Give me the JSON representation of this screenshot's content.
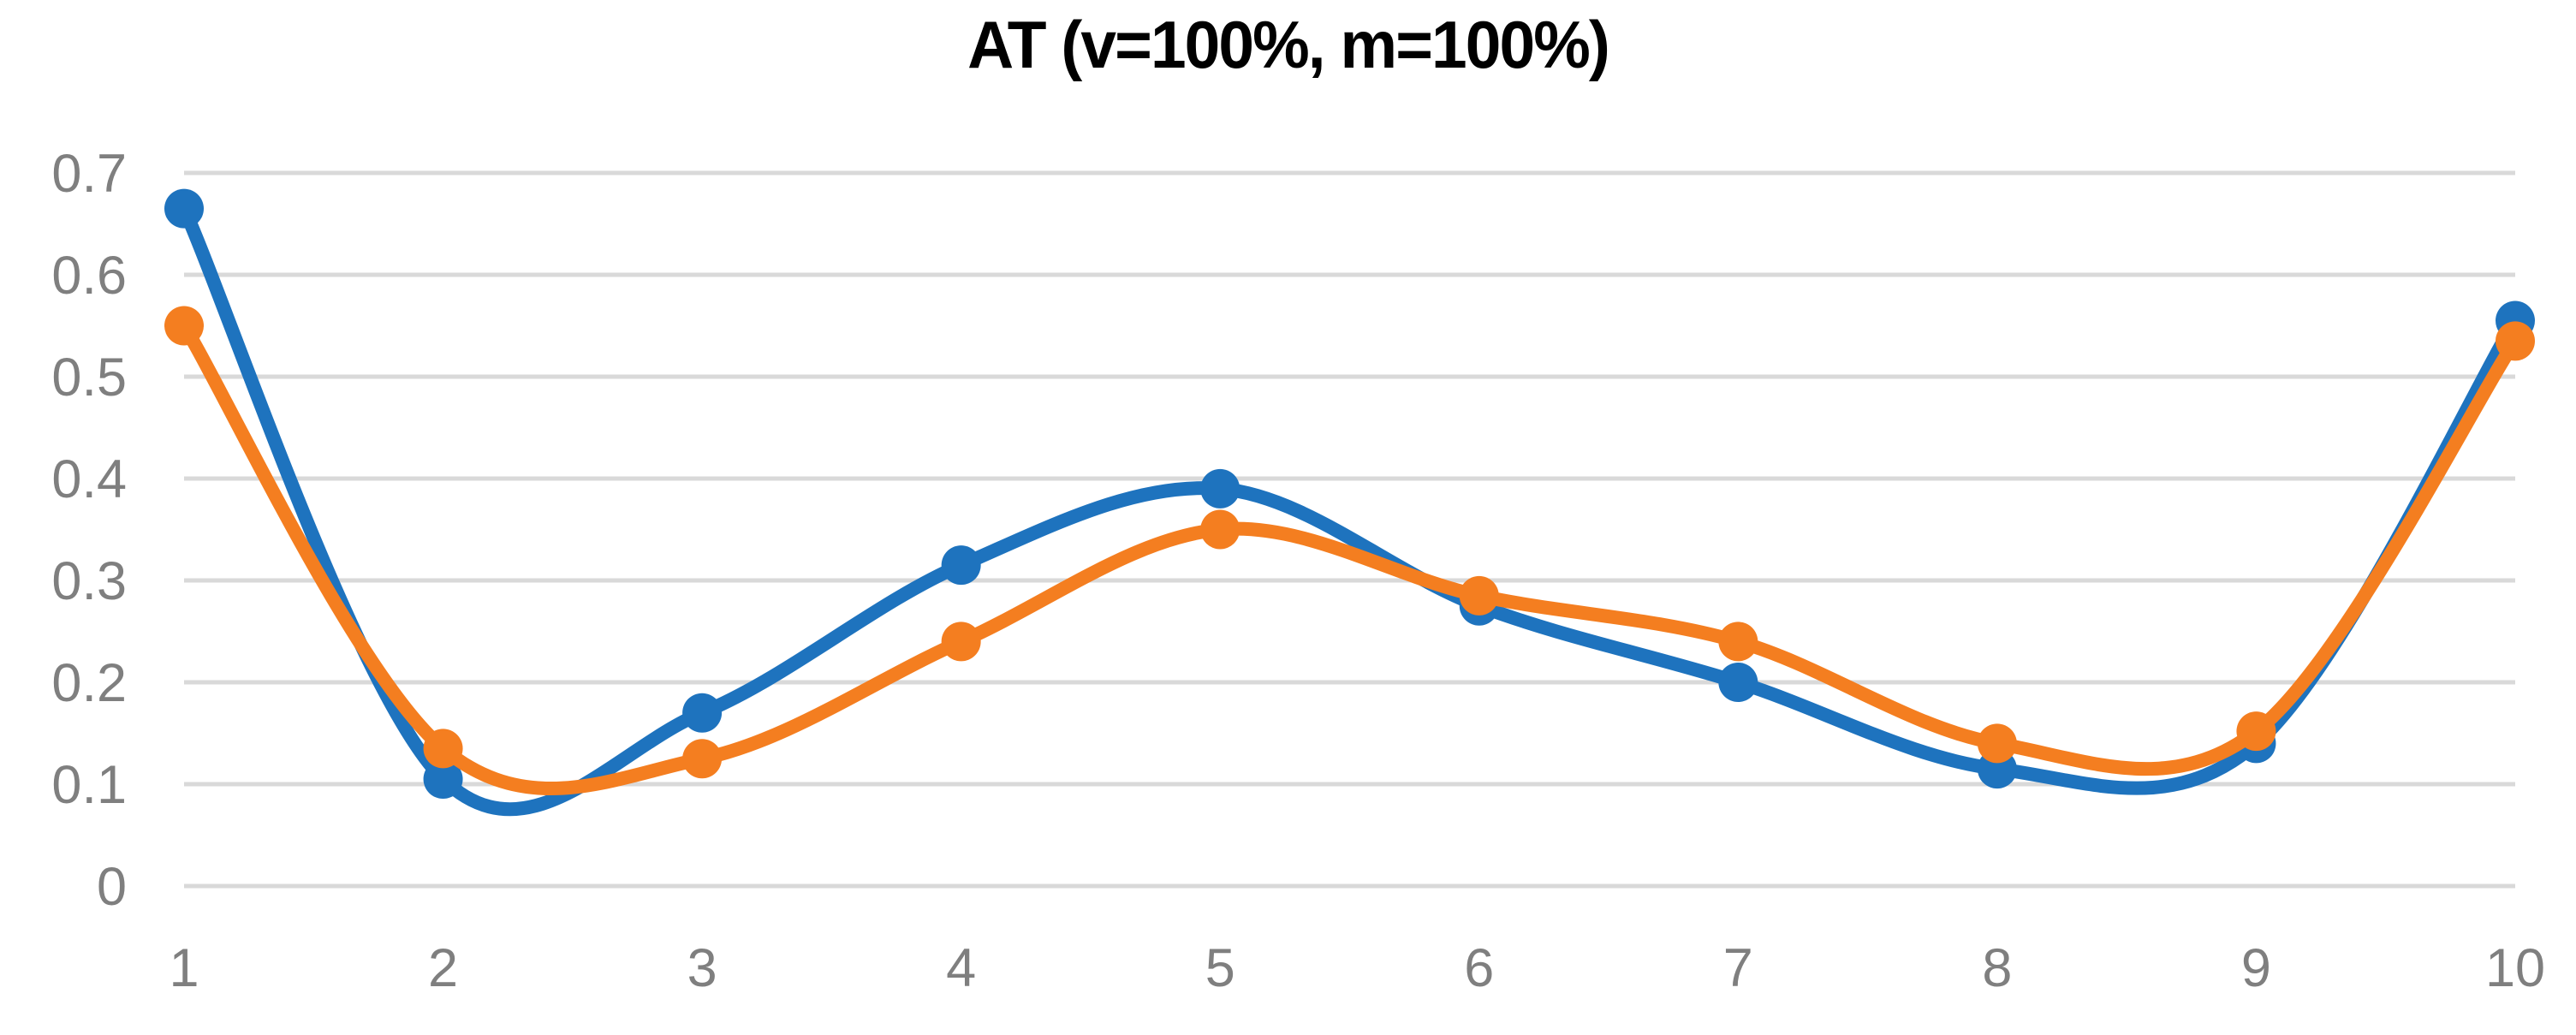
{
  "title": "AT (v=100%, m=100%)",
  "chart_data": {
    "type": "line",
    "title": "AT (v=100%, m=100%)",
    "subtitle": "",
    "x": [
      1,
      2,
      3,
      4,
      5,
      6,
      7,
      8,
      9,
      10
    ],
    "x_tick_labels": [
      "1",
      "2",
      "3",
      "4",
      "5",
      "6",
      "7",
      "8",
      "9",
      "10"
    ],
    "y_tick_labels": [
      "0.7",
      "0.6",
      "0.5",
      "0.4",
      "0.3",
      "0.2",
      "0.1",
      "0"
    ],
    "y_tick_values": [
      0.7,
      0.6,
      0.5,
      0.4,
      0.3,
      0.2,
      0.1,
      0
    ],
    "ylim": [
      0,
      0.7
    ],
    "xlabel": "",
    "ylabel": "",
    "grid": "horizontal-only",
    "legend_position": "none",
    "smooth_lines": true,
    "marker_style": "circle",
    "series": [
      {
        "name": "series_1",
        "color": "#1E73BE",
        "values": [
          0.665,
          0.105,
          0.17,
          0.315,
          0.39,
          0.275,
          0.2,
          0.115,
          0.14,
          0.555
        ]
      },
      {
        "name": "series_2",
        "color": "#F47E20",
        "values": [
          0.55,
          0.135,
          0.125,
          0.24,
          0.35,
          0.285,
          0.24,
          0.14,
          0.152,
          0.535
        ]
      }
    ],
    "style": {
      "gridline_color": "#D9D9D9",
      "tick_label_color": "#7F7F7F",
      "title_color": "#000000",
      "background_color": "#FFFFFF"
    }
  }
}
